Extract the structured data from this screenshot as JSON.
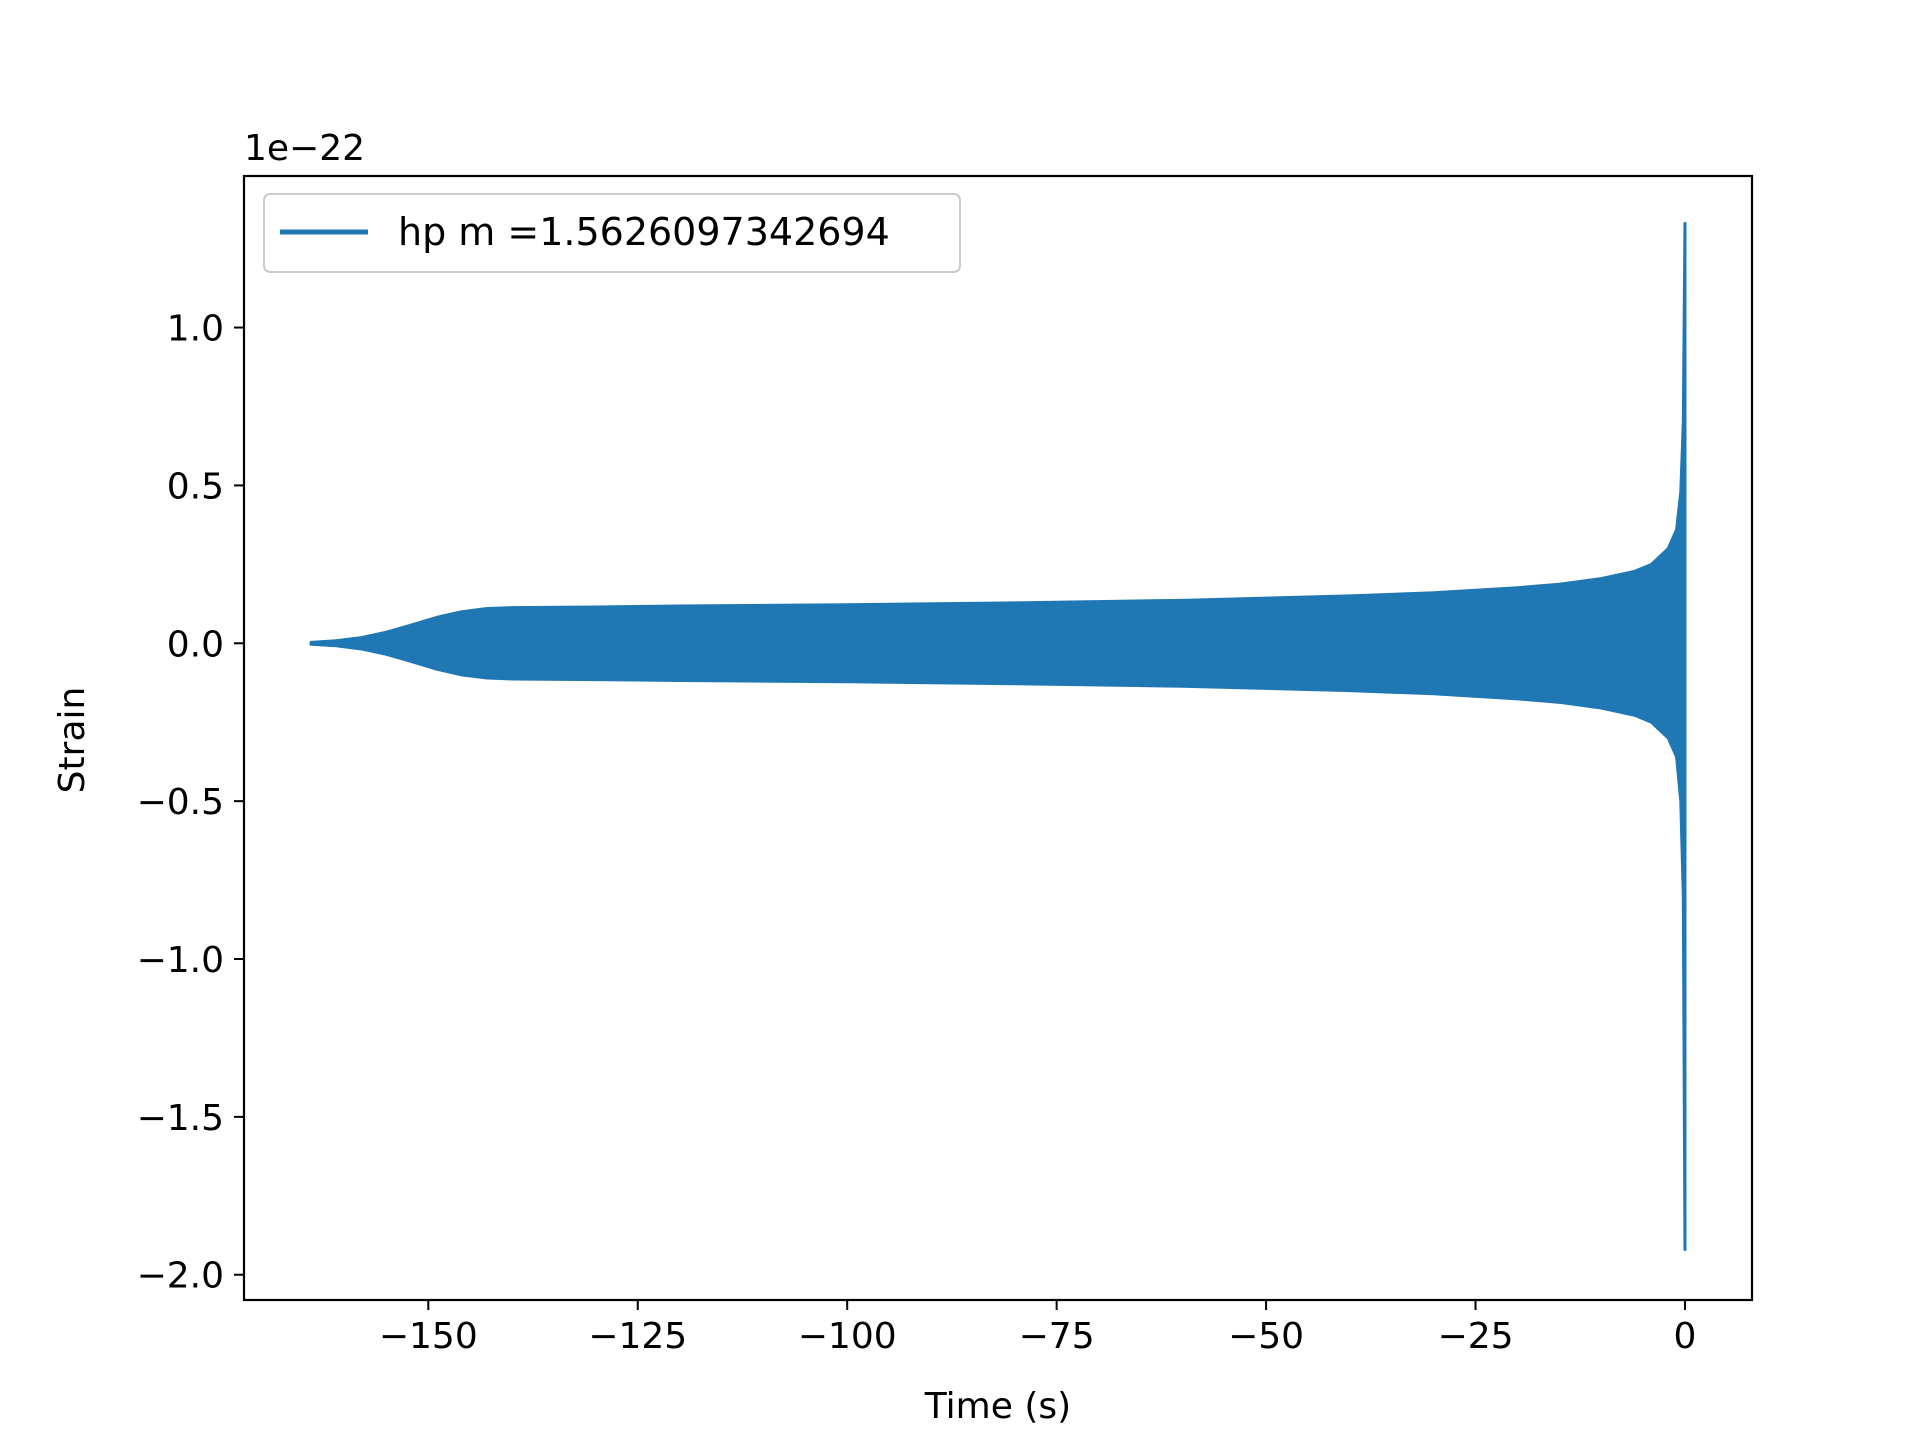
{
  "chart_data": {
    "type": "line",
    "title": "",
    "xlabel": "Time (s)",
    "ylabel": "Strain",
    "y_offset_label": "1e−22",
    "xlim": [
      -172,
      8
    ],
    "ylim": [
      -2.08,
      1.48
    ],
    "x_ticks": [
      {
        "value": -150,
        "label": "−150"
      },
      {
        "value": -125,
        "label": "−125"
      },
      {
        "value": -100,
        "label": "−100"
      },
      {
        "value": -75,
        "label": "−75"
      },
      {
        "value": -50,
        "label": "−50"
      },
      {
        "value": -25,
        "label": "−25"
      },
      {
        "value": 0,
        "label": "0"
      }
    ],
    "y_ticks": [
      {
        "value": 1.0,
        "label": "1.0"
      },
      {
        "value": 0.5,
        "label": "0.5"
      },
      {
        "value": 0.0,
        "label": "0.0"
      },
      {
        "value": -0.5,
        "label": "−0.5"
      },
      {
        "value": -1.0,
        "label": "−1.0"
      },
      {
        "value": -1.5,
        "label": "−1.5"
      },
      {
        "value": -2.0,
        "label": "−2.0"
      }
    ],
    "grid": false,
    "legend": {
      "placement": "top-left"
    },
    "series": [
      {
        "name": "hp m =1.5626097342694",
        "color": "#1f77b4",
        "envelope_x": [
          -164,
          -161,
          -158,
          -155,
          -152,
          -149,
          -146,
          -143,
          -140,
          -130,
          -120,
          -100,
          -80,
          -60,
          -40,
          -30,
          -20,
          -15,
          -10,
          -6,
          -4,
          -2,
          -1,
          -0.5,
          -0.2,
          0
        ],
        "envelope_upper": [
          0.003,
          0.008,
          0.018,
          0.035,
          0.058,
          0.082,
          0.1,
          0.11,
          0.113,
          0.115,
          0.118,
          0.122,
          0.128,
          0.136,
          0.15,
          0.16,
          0.176,
          0.187,
          0.205,
          0.228,
          0.25,
          0.3,
          0.36,
          0.48,
          0.7,
          1.33
        ],
        "envelope_lower": [
          -0.003,
          -0.008,
          -0.018,
          -0.035,
          -0.058,
          -0.082,
          -0.1,
          -0.11,
          -0.113,
          -0.115,
          -0.118,
          -0.122,
          -0.128,
          -0.136,
          -0.15,
          -0.16,
          -0.176,
          -0.187,
          -0.205,
          -0.228,
          -0.25,
          -0.3,
          -0.36,
          -0.5,
          -0.8,
          -1.92
        ]
      }
    ]
  }
}
